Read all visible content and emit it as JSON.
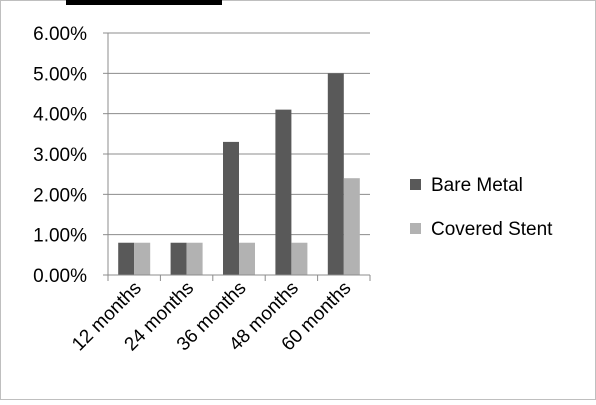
{
  "chart_data": {
    "type": "bar",
    "categories": [
      "12 months",
      "24 months",
      "36 months",
      "48 months",
      "60 months"
    ],
    "series": [
      {
        "name": "Bare Metal",
        "values": [
          0.8,
          0.8,
          3.3,
          4.1,
          5.0
        ],
        "color": "#595959"
      },
      {
        "name": "Covered Stent",
        "values": [
          0.8,
          0.8,
          0.8,
          0.8,
          2.4
        ],
        "color": "#b2b2b2"
      }
    ],
    "ylim": [
      0,
      6
    ],
    "yticks": [
      {
        "value": 0,
        "label": "0.00%"
      },
      {
        "value": 1,
        "label": "1.00%"
      },
      {
        "value": 2,
        "label": "2.00%"
      },
      {
        "value": 3,
        "label": "3.00%"
      },
      {
        "value": 4,
        "label": "4.00%"
      },
      {
        "value": 5,
        "label": "5.00%"
      },
      {
        "value": 6,
        "label": "6.00%"
      }
    ],
    "grid": true,
    "legend_position": "right",
    "title": "",
    "xlabel": "",
    "ylabel": ""
  },
  "colors": {
    "grid": "#8c8c8c",
    "axis": "#8c8c8c",
    "border": "#bfbfbf",
    "top_bar": "#000000"
  }
}
